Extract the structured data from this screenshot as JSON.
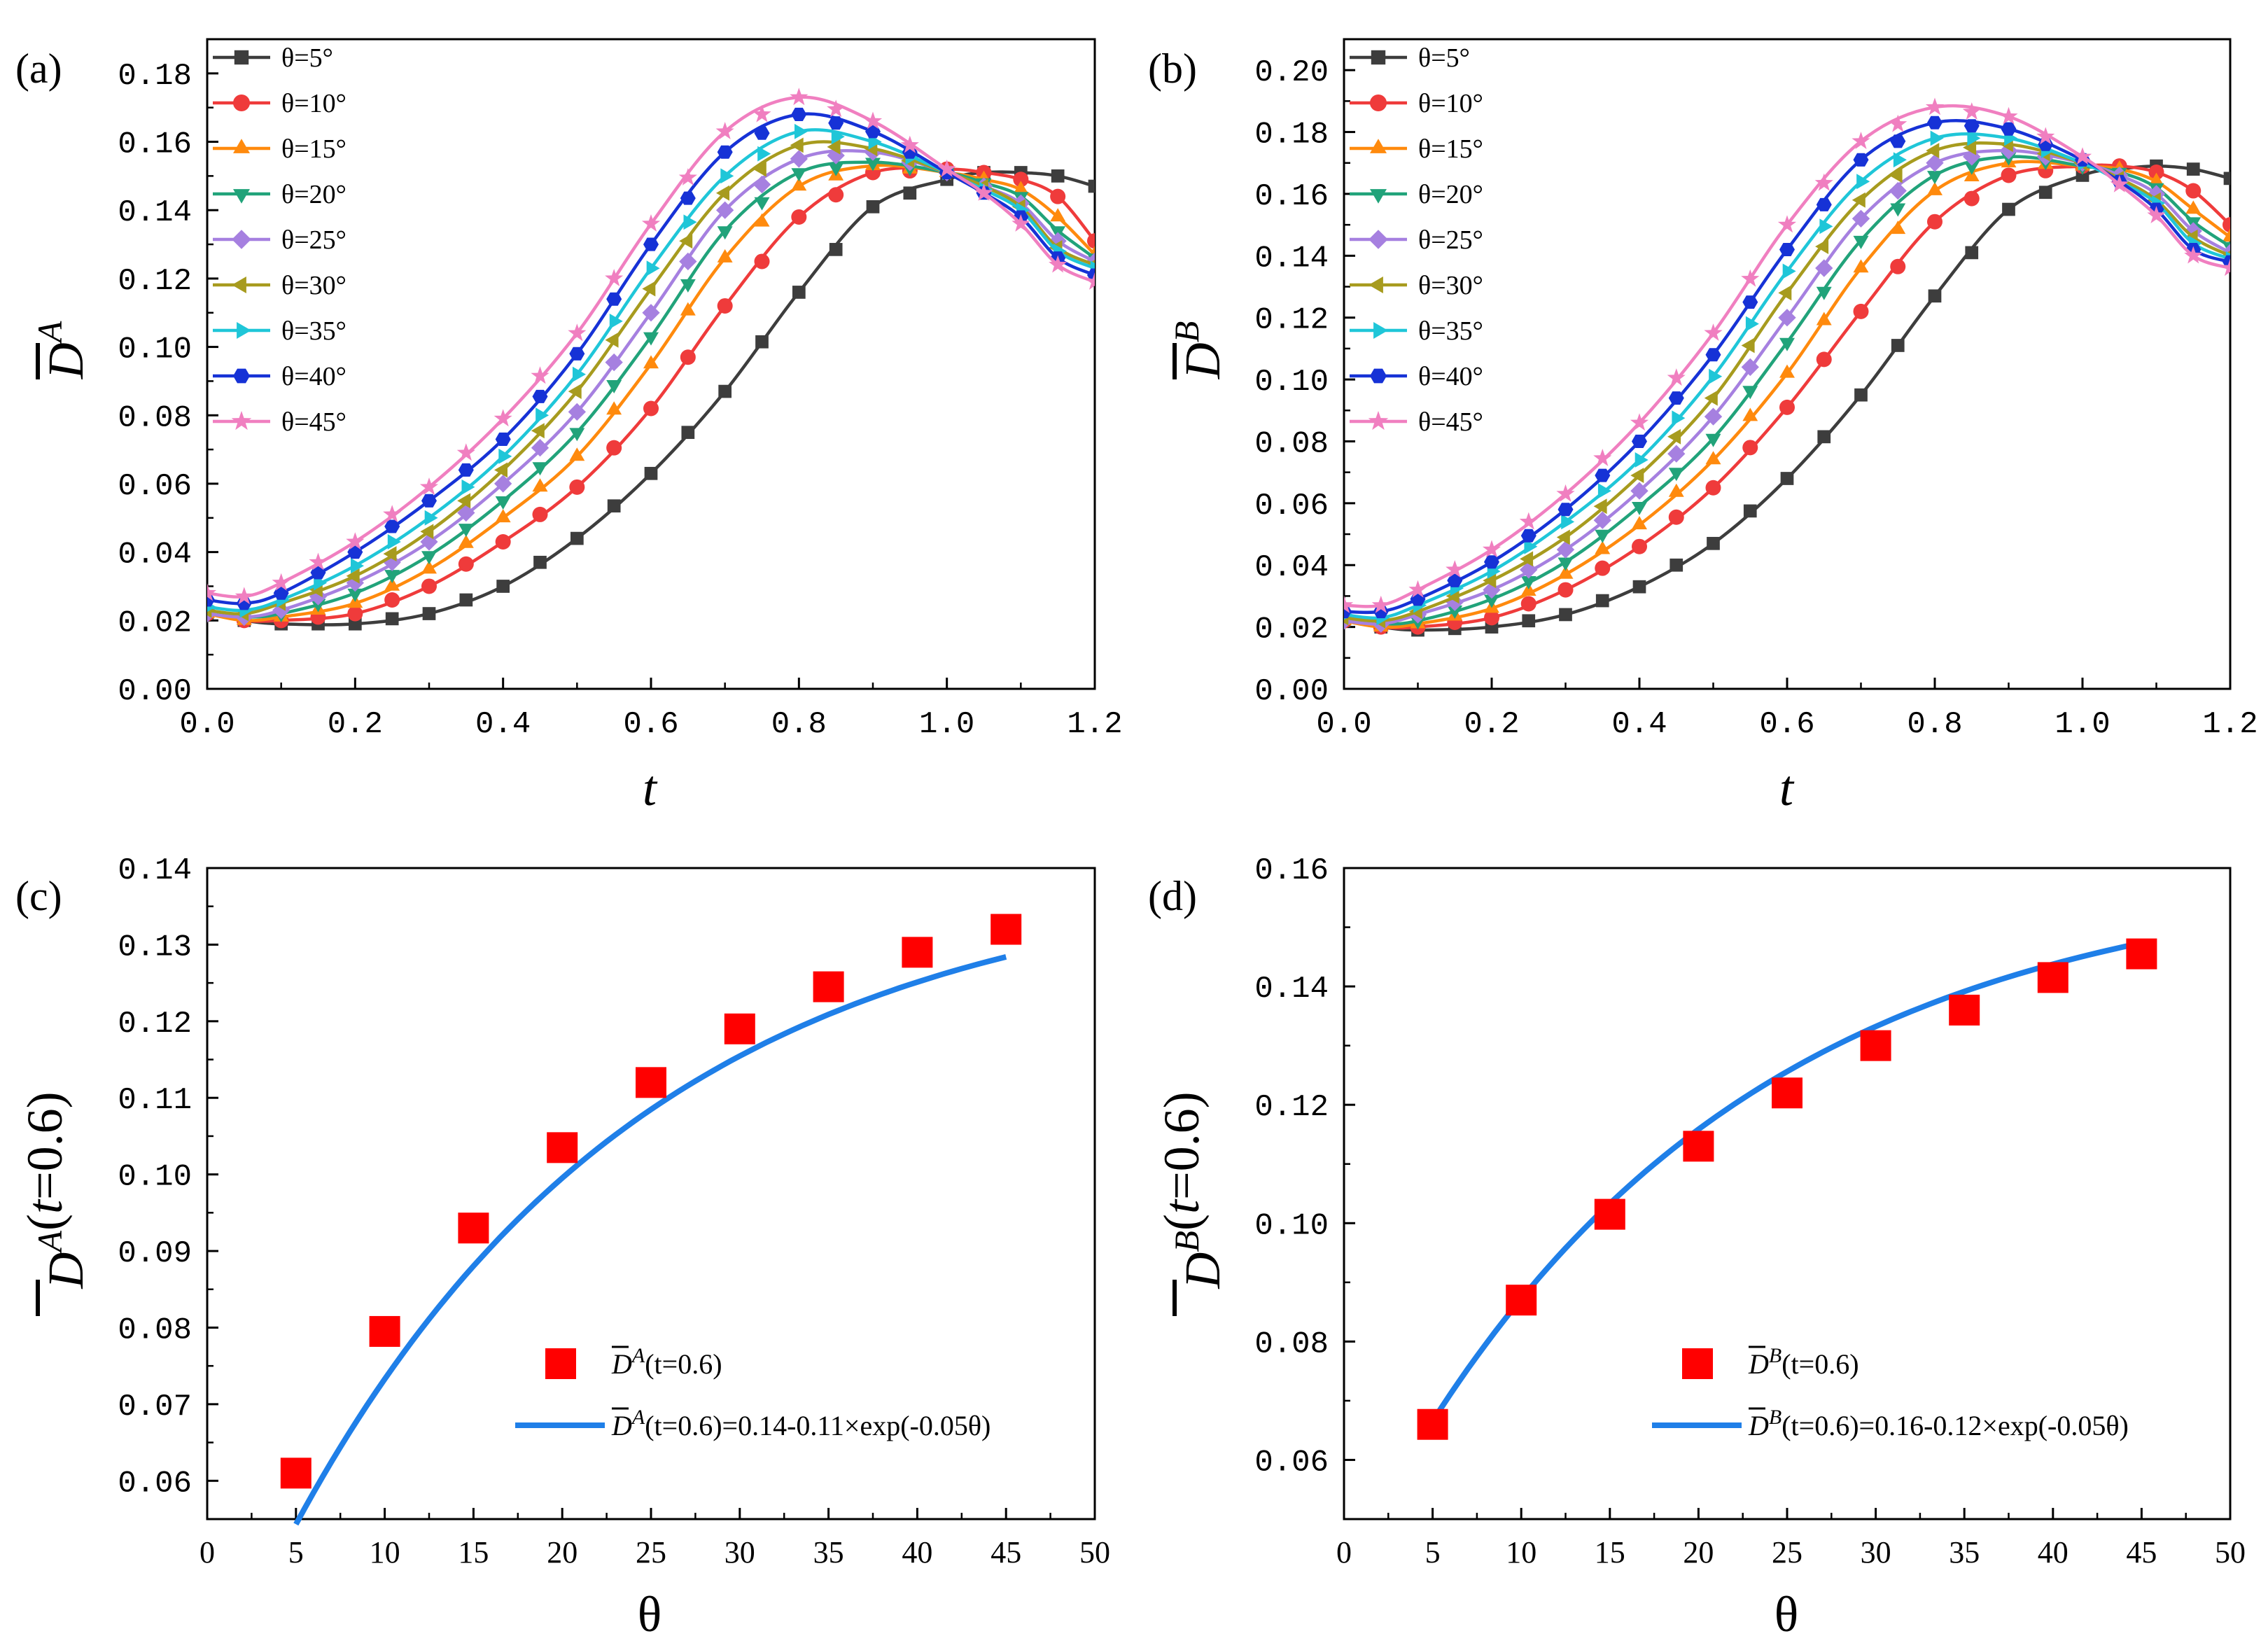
{
  "chart_data": [
    {
      "panel": "(a)",
      "type": "line",
      "xlabel": "t",
      "ylabel": "D̄ A",
      "ylabel_main": "D",
      "ylabel_sup": "A",
      "xlim": [
        0,
        1.2
      ],
      "ylim": [
        0,
        0.19
      ],
      "xticks": [
        "0.0",
        "0.2",
        "0.4",
        "0.6",
        "0.8",
        "1.0",
        "1.2"
      ],
      "yticks": [
        "0.00",
        "0.02",
        "0.04",
        "0.06",
        "0.08",
        "0.10",
        "0.12",
        "0.14",
        "0.16",
        "0.18"
      ],
      "legend_position": "top-left",
      "series": [
        {
          "name": "θ=5°",
          "color": "#3d3d3d",
          "marker": "square",
          "x": [
            0.0,
            0.05,
            0.1,
            0.2,
            0.3,
            0.4,
            0.5,
            0.6,
            0.7,
            0.8,
            0.9,
            1.0,
            1.05,
            1.1,
            1.15,
            1.2
          ],
          "y": [
            0.022,
            0.02,
            0.019,
            0.019,
            0.022,
            0.03,
            0.044,
            0.063,
            0.087,
            0.116,
            0.141,
            0.149,
            0.151,
            0.151,
            0.15,
            0.147
          ]
        },
        {
          "name": "θ=10°",
          "color": "#ef3b3b",
          "marker": "circle",
          "x": [
            0.0,
            0.05,
            0.1,
            0.2,
            0.3,
            0.4,
            0.5,
            0.6,
            0.7,
            0.8,
            0.9,
            1.0,
            1.05,
            1.1,
            1.15,
            1.2
          ],
          "y": [
            0.022,
            0.02,
            0.02,
            0.022,
            0.03,
            0.043,
            0.059,
            0.082,
            0.112,
            0.138,
            0.151,
            0.152,
            0.151,
            0.149,
            0.144,
            0.131
          ]
        },
        {
          "name": "θ=15°",
          "color": "#ff8a0d",
          "marker": "triangle-up",
          "x": [
            0.0,
            0.05,
            0.1,
            0.2,
            0.3,
            0.4,
            0.5,
            0.6,
            0.7,
            0.8,
            0.9,
            1.0,
            1.05,
            1.1,
            1.15,
            1.2
          ],
          "y": [
            0.022,
            0.02,
            0.021,
            0.025,
            0.035,
            0.05,
            0.068,
            0.095,
            0.126,
            0.147,
            0.153,
            0.151,
            0.149,
            0.146,
            0.138,
            0.127
          ]
        },
        {
          "name": "θ=20°",
          "color": "#21a37a",
          "marker": "triangle-down",
          "x": [
            0.0,
            0.05,
            0.1,
            0.2,
            0.3,
            0.4,
            0.5,
            0.6,
            0.7,
            0.8,
            0.9,
            1.0,
            1.05,
            1.1,
            1.15,
            1.2
          ],
          "y": [
            0.022,
            0.021,
            0.022,
            0.028,
            0.039,
            0.055,
            0.075,
            0.103,
            0.134,
            0.151,
            0.154,
            0.151,
            0.148,
            0.144,
            0.134,
            0.126
          ]
        },
        {
          "name": "θ=25°",
          "color": "#a680e0",
          "marker": "diamond",
          "x": [
            0.0,
            0.05,
            0.1,
            0.2,
            0.3,
            0.4,
            0.5,
            0.6,
            0.7,
            0.8,
            0.9,
            1.0,
            1.05,
            1.1,
            1.15,
            1.2
          ],
          "y": [
            0.022,
            0.021,
            0.023,
            0.031,
            0.043,
            0.06,
            0.081,
            0.11,
            0.14,
            0.155,
            0.157,
            0.151,
            0.147,
            0.142,
            0.131,
            0.125
          ]
        },
        {
          "name": "θ=30°",
          "color": "#a79b1e",
          "marker": "triangle-left",
          "x": [
            0.0,
            0.05,
            0.1,
            0.2,
            0.3,
            0.4,
            0.5,
            0.6,
            0.7,
            0.8,
            0.9,
            1.0,
            1.05,
            1.1,
            1.15,
            1.2
          ],
          "y": [
            0.023,
            0.022,
            0.025,
            0.033,
            0.046,
            0.064,
            0.087,
            0.117,
            0.145,
            0.159,
            0.158,
            0.151,
            0.147,
            0.141,
            0.129,
            0.124
          ]
        },
        {
          "name": "θ=35°",
          "color": "#1fc6d8",
          "marker": "triangle-right",
          "x": [
            0.0,
            0.05,
            0.1,
            0.2,
            0.3,
            0.4,
            0.5,
            0.6,
            0.7,
            0.8,
            0.9,
            1.0,
            1.05,
            1.1,
            1.15,
            1.2
          ],
          "y": [
            0.024,
            0.023,
            0.026,
            0.036,
            0.05,
            0.068,
            0.092,
            0.123,
            0.15,
            0.163,
            0.16,
            0.151,
            0.146,
            0.14,
            0.128,
            0.123
          ]
        },
        {
          "name": "θ=40°",
          "color": "#1632d6",
          "marker": "hexagon",
          "x": [
            0.0,
            0.05,
            0.1,
            0.2,
            0.3,
            0.4,
            0.5,
            0.6,
            0.7,
            0.8,
            0.9,
            1.0,
            1.05,
            1.1,
            1.15,
            1.2
          ],
          "y": [
            0.026,
            0.025,
            0.028,
            0.04,
            0.055,
            0.073,
            0.098,
            0.13,
            0.157,
            0.168,
            0.163,
            0.151,
            0.145,
            0.138,
            0.126,
            0.121
          ]
        },
        {
          "name": "θ=45°",
          "color": "#f07fc0",
          "marker": "star",
          "x": [
            0.0,
            0.05,
            0.1,
            0.2,
            0.3,
            0.4,
            0.5,
            0.6,
            0.7,
            0.8,
            0.9,
            1.0,
            1.05,
            1.1,
            1.15,
            1.2
          ],
          "y": [
            0.028,
            0.027,
            0.031,
            0.043,
            0.059,
            0.079,
            0.104,
            0.136,
            0.163,
            0.173,
            0.166,
            0.152,
            0.145,
            0.136,
            0.124,
            0.119
          ]
        }
      ]
    },
    {
      "panel": "(b)",
      "type": "line",
      "xlabel": "t",
      "ylabel": "D̄ B",
      "ylabel_main": "D",
      "ylabel_sup": "B",
      "xlim": [
        0,
        1.2
      ],
      "ylim": [
        0,
        0.21
      ],
      "xticks": [
        "0.0",
        "0.2",
        "0.4",
        "0.6",
        "0.8",
        "1.0",
        "1.2"
      ],
      "yticks": [
        "0.00",
        "0.02",
        "0.04",
        "0.06",
        "0.08",
        "0.10",
        "0.12",
        "0.14",
        "0.16",
        "0.18",
        "0.20"
      ],
      "legend_position": "top-left",
      "series": [
        {
          "name": "θ=5°",
          "color": "#3d3d3d",
          "marker": "square",
          "x": [
            0.0,
            0.05,
            0.1,
            0.2,
            0.3,
            0.4,
            0.5,
            0.6,
            0.7,
            0.8,
            0.9,
            1.0,
            1.05,
            1.1,
            1.15,
            1.2
          ],
          "y": [
            0.022,
            0.02,
            0.019,
            0.02,
            0.024,
            0.033,
            0.047,
            0.068,
            0.095,
            0.127,
            0.155,
            0.166,
            0.168,
            0.169,
            0.168,
            0.165
          ]
        },
        {
          "name": "θ=10°",
          "color": "#ef3b3b",
          "marker": "circle",
          "x": [
            0.0,
            0.05,
            0.1,
            0.2,
            0.3,
            0.4,
            0.5,
            0.6,
            0.7,
            0.8,
            0.9,
            1.0,
            1.05,
            1.1,
            1.15,
            1.2
          ],
          "y": [
            0.022,
            0.02,
            0.02,
            0.023,
            0.032,
            0.046,
            0.065,
            0.091,
            0.122,
            0.151,
            0.166,
            0.169,
            0.169,
            0.167,
            0.161,
            0.15
          ]
        },
        {
          "name": "θ=15°",
          "color": "#ff8a0d",
          "marker": "triangle-up",
          "x": [
            0.0,
            0.05,
            0.1,
            0.2,
            0.3,
            0.4,
            0.5,
            0.6,
            0.7,
            0.8,
            0.9,
            1.0,
            1.05,
            1.1,
            1.15,
            1.2
          ],
          "y": [
            0.022,
            0.02,
            0.021,
            0.026,
            0.037,
            0.053,
            0.074,
            0.102,
            0.136,
            0.161,
            0.17,
            0.169,
            0.168,
            0.164,
            0.155,
            0.146
          ]
        },
        {
          "name": "θ=20°",
          "color": "#21a37a",
          "marker": "triangle-down",
          "x": [
            0.0,
            0.05,
            0.1,
            0.2,
            0.3,
            0.4,
            0.5,
            0.6,
            0.7,
            0.8,
            0.9,
            1.0,
            1.05,
            1.1,
            1.15,
            1.2
          ],
          "y": [
            0.022,
            0.021,
            0.022,
            0.029,
            0.041,
            0.059,
            0.081,
            0.112,
            0.145,
            0.166,
            0.172,
            0.169,
            0.167,
            0.162,
            0.151,
            0.143
          ]
        },
        {
          "name": "θ=25°",
          "color": "#a680e0",
          "marker": "diamond",
          "x": [
            0.0,
            0.05,
            0.1,
            0.2,
            0.3,
            0.4,
            0.5,
            0.6,
            0.7,
            0.8,
            0.9,
            1.0,
            1.05,
            1.1,
            1.15,
            1.2
          ],
          "y": [
            0.022,
            0.021,
            0.024,
            0.032,
            0.045,
            0.064,
            0.088,
            0.12,
            0.152,
            0.17,
            0.174,
            0.17,
            0.166,
            0.16,
            0.148,
            0.141
          ]
        },
        {
          "name": "θ=30°",
          "color": "#a79b1e",
          "marker": "triangle-left",
          "x": [
            0.0,
            0.05,
            0.1,
            0.2,
            0.3,
            0.4,
            0.5,
            0.6,
            0.7,
            0.8,
            0.9,
            1.0,
            1.05,
            1.1,
            1.15,
            1.2
          ],
          "y": [
            0.023,
            0.022,
            0.025,
            0.035,
            0.049,
            0.069,
            0.094,
            0.128,
            0.158,
            0.174,
            0.176,
            0.17,
            0.165,
            0.158,
            0.146,
            0.14
          ]
        },
        {
          "name": "θ=35°",
          "color": "#1fc6d8",
          "marker": "triangle-right",
          "x": [
            0.0,
            0.05,
            0.1,
            0.2,
            0.3,
            0.4,
            0.5,
            0.6,
            0.7,
            0.8,
            0.9,
            1.0,
            1.05,
            1.1,
            1.15,
            1.2
          ],
          "y": [
            0.024,
            0.023,
            0.027,
            0.038,
            0.054,
            0.074,
            0.101,
            0.135,
            0.164,
            0.178,
            0.178,
            0.17,
            0.164,
            0.157,
            0.144,
            0.139
          ]
        },
        {
          "name": "θ=40°",
          "color": "#1632d6",
          "marker": "hexagon",
          "x": [
            0.0,
            0.05,
            0.1,
            0.2,
            0.3,
            0.4,
            0.5,
            0.6,
            0.7,
            0.8,
            0.9,
            1.0,
            1.05,
            1.1,
            1.15,
            1.2
          ],
          "y": [
            0.025,
            0.025,
            0.029,
            0.041,
            0.058,
            0.08,
            0.108,
            0.142,
            0.171,
            0.183,
            0.181,
            0.171,
            0.164,
            0.155,
            0.142,
            0.138
          ]
        },
        {
          "name": "θ=45°",
          "color": "#f07fc0",
          "marker": "star",
          "x": [
            0.0,
            0.05,
            0.1,
            0.2,
            0.3,
            0.4,
            0.5,
            0.6,
            0.7,
            0.8,
            0.9,
            1.0,
            1.05,
            1.1,
            1.15,
            1.2
          ],
          "y": [
            0.027,
            0.027,
            0.032,
            0.045,
            0.063,
            0.086,
            0.115,
            0.15,
            0.177,
            0.188,
            0.185,
            0.172,
            0.163,
            0.153,
            0.14,
            0.136
          ]
        }
      ]
    },
    {
      "panel": "(c)",
      "type": "scatter",
      "xlabel": "θ",
      "ylabel": "D̄ A(t=0.6)",
      "ylabel_main": "D",
      "ylabel_sup": "A",
      "ylabel_tail": "(t=0.6)",
      "xlim": [
        0,
        50
      ],
      "ylim": [
        0.055,
        0.14
      ],
      "xticks": [
        "0",
        "5",
        "10",
        "15",
        "20",
        "25",
        "30",
        "35",
        "40",
        "45",
        "50"
      ],
      "yticks": [
        "0.06",
        "0.07",
        "0.08",
        "0.09",
        "0.10",
        "0.11",
        "0.12",
        "0.13",
        "0.14"
      ],
      "legend_position": "bottom-right",
      "points": {
        "name": "D̄A(t=0.6)",
        "name_main": "D",
        "name_sup": "A",
        "name_tail": "(t=0.6)",
        "color": "#ff0000",
        "x": [
          5,
          10,
          15,
          20,
          25,
          30,
          35,
          40,
          45
        ],
        "y": [
          0.061,
          0.0795,
          0.093,
          0.1035,
          0.112,
          0.119,
          0.1245,
          0.129,
          0.132
        ]
      },
      "fit": {
        "name": "D̄A(t=0.6)=0.14-0.11×exp(-0.05θ)",
        "name_main": "D",
        "name_sup": "A",
        "name_tail": "(t=0.6)=0.14-0.11×exp(-0.05θ)",
        "color": "#1f7fe8",
        "a": 0.14,
        "b": 0.11,
        "k": 0.05,
        "x_range": [
          5,
          45
        ]
      }
    },
    {
      "panel": "(d)",
      "type": "scatter",
      "xlabel": "θ",
      "ylabel": "D̄ B(t=0.6)",
      "ylabel_main": "D",
      "ylabel_sup": "B",
      "ylabel_tail": "(t=0.6)",
      "xlim": [
        0,
        50
      ],
      "ylim": [
        0.05,
        0.16
      ],
      "xticks": [
        "0",
        "5",
        "10",
        "15",
        "20",
        "25",
        "30",
        "35",
        "40",
        "45",
        "50"
      ],
      "yticks": [
        "0.06",
        "0.08",
        "0.10",
        "0.12",
        "0.14",
        "0.16"
      ],
      "legend_position": "bottom-right",
      "points": {
        "name": "D̄B(t=0.6)",
        "name_main": "D",
        "name_sup": "B",
        "name_tail": "(t=0.6)",
        "color": "#ff0000",
        "x": [
          5,
          10,
          15,
          20,
          25,
          30,
          35,
          40,
          45
        ],
        "y": [
          0.066,
          0.087,
          0.1015,
          0.113,
          0.122,
          0.13,
          0.136,
          0.1415,
          0.1455
        ]
      },
      "fit": {
        "name": "D̄B(t=0.6)=0.16-0.12×exp(-0.05θ)",
        "name_main": "D",
        "name_sup": "B",
        "name_tail": "(t=0.6)=0.16-0.12×exp(-0.05θ)",
        "color": "#1f7fe8",
        "a": 0.16,
        "b": 0.12,
        "k": 0.05,
        "x_range": [
          5,
          45
        ]
      }
    }
  ]
}
